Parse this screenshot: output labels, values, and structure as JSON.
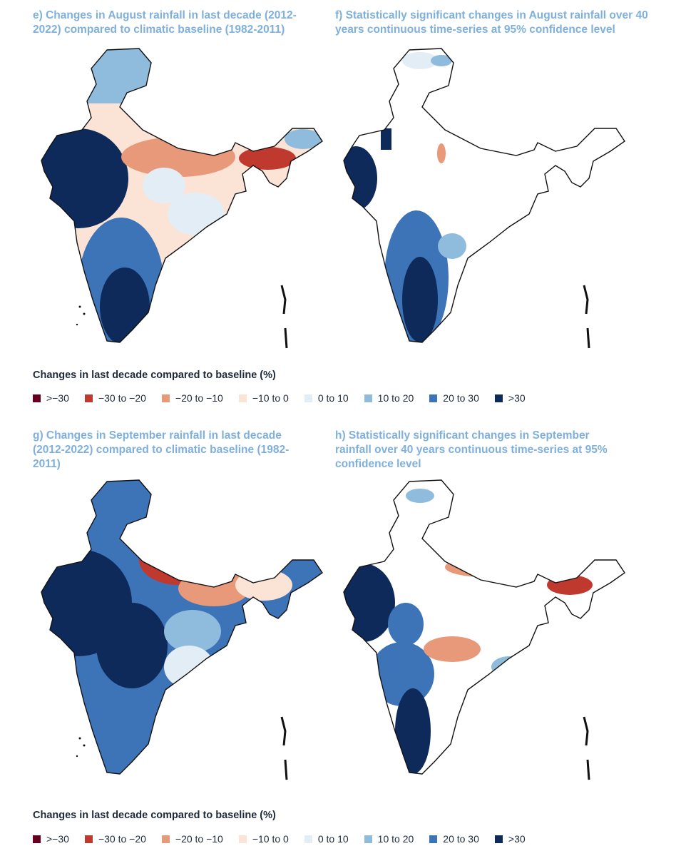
{
  "panels": [
    {
      "id": "e",
      "title": "e) Changes in August rainfall in last decade (2012-2022) compared to climatic baseline (1982-2011)"
    },
    {
      "id": "f",
      "title": "f) Statistically significant changes in August rainfall over 40 years continuous time-series at 95% confidence level"
    },
    {
      "id": "g",
      "title": "g) Changes in September rainfall in last decade (2012-2022) compared to climatic baseline (1982-2011)"
    },
    {
      "id": "h",
      "title": "h) Statistically significant changes in September rainfall over 40 years continuous time-series at 95% confidence level"
    }
  ],
  "legend": {
    "title": "Changes in last decade compared to baseline (%)",
    "items": [
      {
        "label": ">−30",
        "color": "#67001f"
      },
      {
        "label": "−30 to −20",
        "color": "#c0392f"
      },
      {
        "label": "−20 to −10",
        "color": "#e8997a"
      },
      {
        "label": "−10 to 0",
        "color": "#fbe3d6"
      },
      {
        "label": "0 to 10",
        "color": "#e3edf5"
      },
      {
        "label": "10 to 20",
        "color": "#8fbcdc"
      },
      {
        "label": "20 to 30",
        "color": "#3d74b8"
      },
      {
        "label": ">30",
        "color": "#0e2a5a"
      }
    ]
  }
}
